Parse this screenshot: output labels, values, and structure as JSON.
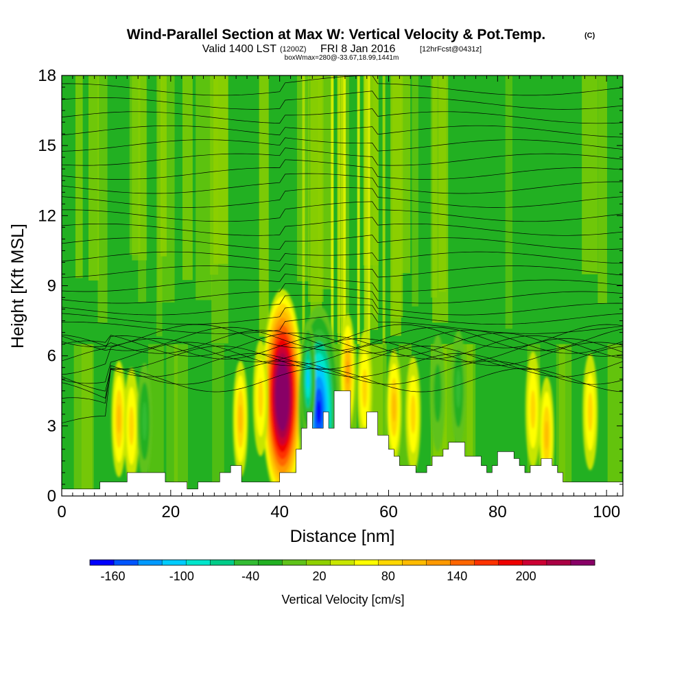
{
  "title": {
    "main": "Wind-Parallel Section at Max W: Vertical Velocity & Pot.Temp.",
    "mark": "(C)",
    "valid": "Valid 1400 LST",
    "zulu": "(1200Z)",
    "date": "FRI 8 Jan 2016",
    "forecast": "[12hrFcst@0431z]",
    "note": "boxWmax=280@-33.67,18.99,1441m"
  },
  "chart_data": {
    "type": "heatmap",
    "title": "Wind-Parallel Section at Max W: Vertical Velocity & Pot.Temp.",
    "xlabel": "Distance [nm]",
    "ylabel": "Height [Kft MSL]",
    "xlim": [
      0,
      103
    ],
    "ylim": [
      0,
      18
    ],
    "x_ticks": [
      0,
      20,
      40,
      60,
      80,
      100
    ],
    "y_ticks": [
      0,
      3,
      6,
      9,
      12,
      15,
      18
    ],
    "grid": false,
    "colorbar": {
      "label": "Vertical Velocity [cm/s]",
      "tick_labels": [
        "-160",
        "-100",
        "-40",
        "20",
        "80",
        "140",
        "200"
      ],
      "tick_values": [
        -160,
        -100,
        -40,
        20,
        80,
        140,
        200
      ],
      "min": -180,
      "max": 260,
      "step": 20,
      "colors": [
        "#0000ff",
        "#0055ff",
        "#0099ff",
        "#00ccff",
        "#00e5cc",
        "#00cc88",
        "#33bb33",
        "#22b022",
        "#5fc21a",
        "#8fd000",
        "#c8e600",
        "#ffff00",
        "#ffd700",
        "#ffbb00",
        "#ff9900",
        "#ff6600",
        "#ff3300",
        "#ee0000",
        "#cc0033",
        "#aa0044",
        "#880066"
      ]
    },
    "terrain": {
      "x": [
        0,
        6,
        7,
        11,
        12,
        18,
        19,
        22,
        23,
        24,
        25,
        28,
        29,
        30,
        31,
        32,
        33,
        39,
        40,
        42,
        43,
        44,
        45,
        46,
        47,
        48,
        49,
        50,
        52,
        53,
        55,
        56,
        57,
        58,
        59,
        60,
        61,
        62,
        63,
        65,
        66,
        67,
        68,
        69,
        70,
        71,
        73,
        74,
        76,
        77,
        78,
        79,
        80,
        82,
        83,
        84,
        85,
        86,
        87,
        88,
        89,
        90,
        91,
        92,
        93,
        95,
        96,
        103
      ],
      "height_kft": [
        0.3,
        0.3,
        0.6,
        0.6,
        1.0,
        1.0,
        0.6,
        0.6,
        0.3,
        0.3,
        0.6,
        0.6,
        1.0,
        1.0,
        1.3,
        1.3,
        0.6,
        0.6,
        1.0,
        1.0,
        2.0,
        2.9,
        3.6,
        2.9,
        2.9,
        3.6,
        2.9,
        4.5,
        4.5,
        2.9,
        2.9,
        3.6,
        3.6,
        2.6,
        2.6,
        2.0,
        1.7,
        1.3,
        1.3,
        1.0,
        1.0,
        1.3,
        1.7,
        1.7,
        2.0,
        2.3,
        2.3,
        1.7,
        1.7,
        1.3,
        1.0,
        1.3,
        1.9,
        1.9,
        1.6,
        1.3,
        1.0,
        1.3,
        1.3,
        1.6,
        1.6,
        1.3,
        1.0,
        0.6,
        0.6,
        0.6,
        0.6,
        0.6
      ]
    },
    "theta_isentropes_kft": [
      2.2,
      3.0,
      3.8,
      4.6,
      5.0,
      5.4,
      5.7,
      6.0,
      6.3,
      6.6,
      6.9,
      7.2,
      7.6,
      8.0,
      8.5,
      9.0,
      9.6,
      10.2,
      10.8,
      11.4,
      12.0,
      12.6,
      13.2,
      13.8,
      14.4,
      15.0,
      15.6,
      16.2,
      16.8,
      17.4
    ],
    "w_features": [
      {
        "x": 40.5,
        "height_kft": 4.3,
        "w_cm_s": 280
      },
      {
        "x": 47.2,
        "height_kft": 3.6,
        "w_cm_s": -160
      },
      {
        "x": 45.2,
        "height_kft": 5.0,
        "w_cm_s": -100
      },
      {
        "x": 52.5,
        "height_kft": 5.3,
        "w_cm_s": 80
      },
      {
        "x": 61.0,
        "height_kft": 3.8,
        "w_cm_s": 60
      },
      {
        "x": 55.6,
        "height_kft": 4.6,
        "w_cm_s": 40
      },
      {
        "x": 10.5,
        "height_kft": 3.3,
        "w_cm_s": 50
      },
      {
        "x": 12.8,
        "height_kft": 3.0,
        "w_cm_s": 40
      },
      {
        "x": 15.2,
        "height_kft": 3.2,
        "w_cm_s": -40
      },
      {
        "x": 32.8,
        "height_kft": 3.3,
        "w_cm_s": 60
      },
      {
        "x": 36.5,
        "height_kft": 4.2,
        "w_cm_s": 30
      },
      {
        "x": 64.5,
        "height_kft": 3.5,
        "w_cm_s": 40
      },
      {
        "x": 69.0,
        "height_kft": 4.4,
        "w_cm_s": -20
      },
      {
        "x": 72.8,
        "height_kft": 4.6,
        "w_cm_s": -40
      },
      {
        "x": 86.5,
        "height_kft": 3.7,
        "w_cm_s": 40
      },
      {
        "x": 89.0,
        "height_kft": 2.6,
        "w_cm_s": 50
      },
      {
        "x": 97.0,
        "height_kft": 3.6,
        "w_cm_s": 30
      }
    ]
  }
}
